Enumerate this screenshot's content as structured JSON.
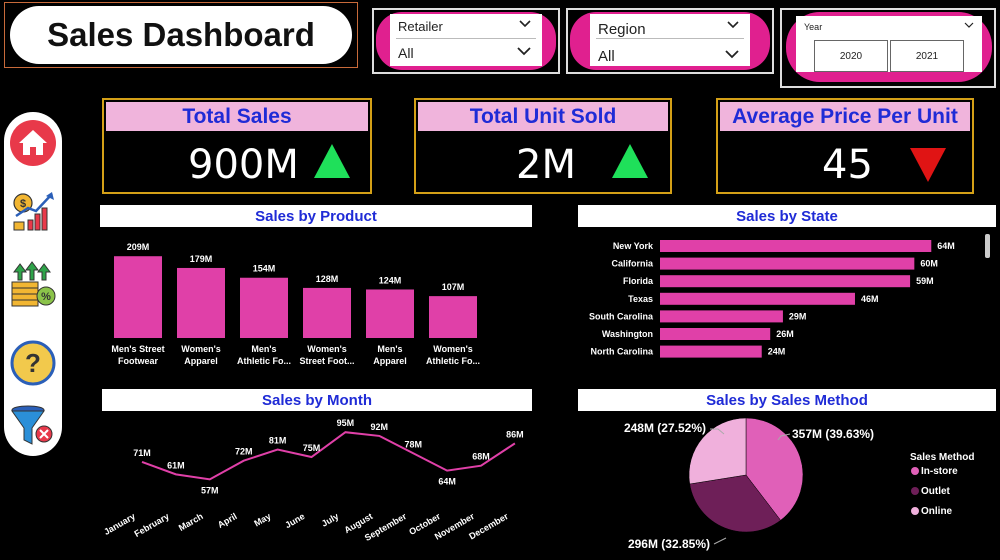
{
  "title": "Sales Dashboard",
  "filters": {
    "retailer": {
      "label": "Retailer",
      "value": "All"
    },
    "region": {
      "label": "Region",
      "value": "All"
    },
    "year": {
      "label": "Year",
      "options": [
        "2020",
        "2021"
      ]
    }
  },
  "nav": [
    {
      "name": "home",
      "icon": "home-icon"
    },
    {
      "name": "sales-growth",
      "icon": "sales-growth-icon"
    },
    {
      "name": "finance",
      "icon": "finance-icon"
    },
    {
      "name": "help",
      "icon": "question-icon"
    },
    {
      "name": "clear-filters",
      "icon": "clear-filter-icon"
    }
  ],
  "kpis": [
    {
      "title": "Total Sales",
      "value": "900M",
      "trend": "up",
      "trend_color": "#1fe05a"
    },
    {
      "title": "Total Unit Sold",
      "value": "2M",
      "trend": "up",
      "trend_color": "#1fe05a"
    },
    {
      "title": "Average Price Per Unit",
      "value": "45",
      "trend": "down",
      "trend_color": "#e01414"
    }
  ],
  "colors": {
    "accent": "#e040a8",
    "header_text": "#1f2bd6",
    "kpi_header_bg": "#f0b4dc",
    "kpi_border": "#d4a017"
  },
  "charts": {
    "by_product": {
      "title": "Sales by Product",
      "chart_data": {
        "type": "bar",
        "categories": [
          [
            "Men's Street",
            "Footwear"
          ],
          [
            "Women's",
            "Apparel"
          ],
          [
            "Men's",
            "Athletic Fo..."
          ],
          [
            "Women's",
            "Street Foot..."
          ],
          [
            "Men's",
            "Apparel"
          ],
          [
            "Women's",
            "Athletic Fo..."
          ]
        ],
        "values": [
          209,
          179,
          154,
          128,
          124,
          107
        ],
        "labels": [
          "209M",
          "179M",
          "154M",
          "128M",
          "124M",
          "107M"
        ],
        "ylim": [
          0,
          230
        ]
      }
    },
    "by_state": {
      "title": "Sales by State",
      "chart_data": {
        "type": "bar",
        "orientation": "horizontal",
        "categories": [
          "New York",
          "California",
          "Florida",
          "Texas",
          "South Carolina",
          "Washington",
          "North Carolina"
        ],
        "values": [
          64,
          60,
          59,
          46,
          29,
          26,
          24
        ],
        "labels": [
          "64M",
          "60M",
          "59M",
          "46M",
          "29M",
          "26M",
          "24M"
        ],
        "xlim": [
          0,
          67
        ]
      }
    },
    "by_month": {
      "title": "Sales by Month",
      "chart_data": {
        "type": "line",
        "categories": [
          "January",
          "February",
          "March",
          "April",
          "May",
          "June",
          "July",
          "August",
          "September",
          "October",
          "November",
          "December"
        ],
        "values": [
          71,
          61,
          57,
          72,
          81,
          75,
          95,
          92,
          78,
          64,
          68,
          86
        ],
        "labels": [
          "71M",
          "61M",
          "57M",
          "72M",
          "81M",
          "75M",
          "95M",
          "92M",
          "78M",
          "64M",
          "68M",
          "86M"
        ],
        "ylim": [
          50,
          100
        ]
      }
    },
    "by_method": {
      "title": "Sales by Sales Method",
      "chart_data": {
        "type": "pie",
        "categories": [
          "In-store",
          "Outlet",
          "Online"
        ],
        "values": [
          357,
          296,
          248
        ],
        "labels": [
          "357M (39.63%)",
          "296M (32.85%)",
          "248M (27.52%)"
        ],
        "colors": [
          "#e060b8",
          "#6e1f58",
          "#f0b0dc"
        ],
        "legend_title": "Sales Method"
      }
    }
  }
}
